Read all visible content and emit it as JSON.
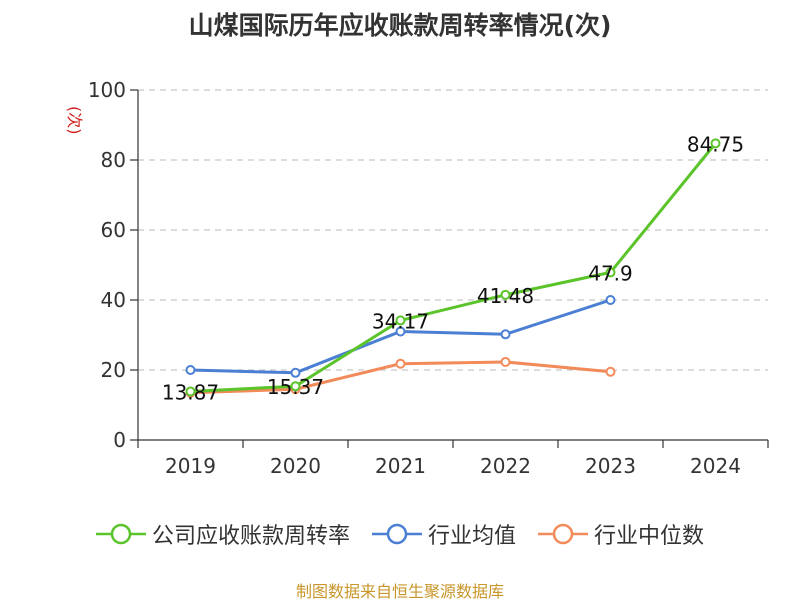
{
  "chart_data": {
    "type": "line",
    "title": "山煤国际历年应收账款周转率情况(次)",
    "ylabel": "(次)",
    "xlabel": "",
    "categories": [
      "2019",
      "2020",
      "2021",
      "2022",
      "2023",
      "2024"
    ],
    "ylim": [
      0,
      100
    ],
    "yticks": [
      0,
      20,
      40,
      60,
      80,
      100
    ],
    "grid": true,
    "legend_position": "bottom",
    "series": [
      {
        "name": "公司应收账款周转率",
        "color": "#5bc42a",
        "values": [
          13.87,
          15.37,
          34.17,
          41.48,
          47.9,
          84.75
        ],
        "labels": [
          "13.87",
          "15.37",
          "34.17",
          "41.48",
          "47.9",
          "84.75"
        ]
      },
      {
        "name": "行业均值",
        "color": "#4a7fd4",
        "values": [
          20.0,
          19.2,
          31.0,
          30.2,
          40.0,
          null
        ]
      },
      {
        "name": "行业中位数",
        "color": "#f28a5a",
        "values": [
          13.5,
          14.5,
          21.8,
          22.3,
          19.5,
          null
        ]
      }
    ],
    "source": "制图数据来自恒生聚源数据库"
  }
}
